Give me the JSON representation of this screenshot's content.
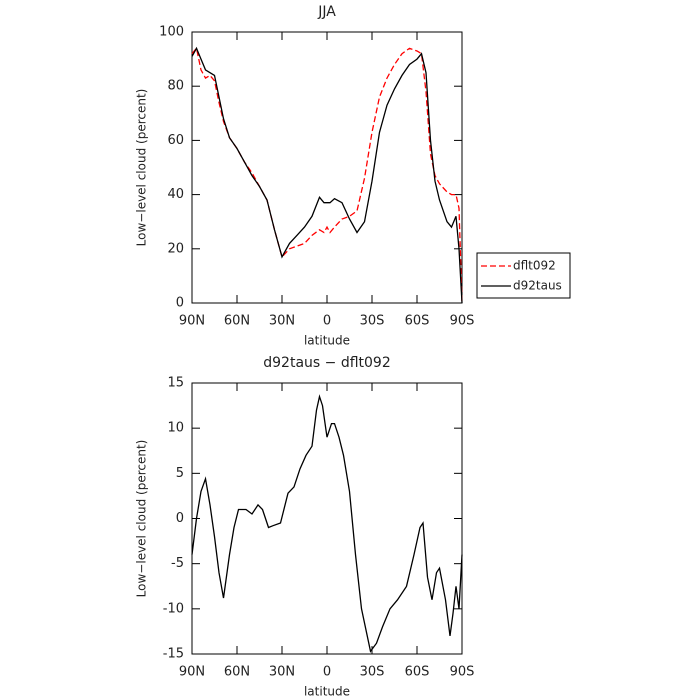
{
  "chart_data": [
    {
      "type": "line",
      "title": "JJA",
      "xlabel": "latitude",
      "ylabel": "Low−level cloud (percent)",
      "x": [
        90,
        87,
        84,
        81,
        78,
        75,
        72,
        69,
        65,
        60,
        55,
        50,
        45,
        40,
        35,
        30,
        25,
        20,
        15,
        10,
        5,
        2,
        0,
        -2,
        -5,
        -10,
        -15,
        -20,
        -25,
        -30,
        -35,
        -40,
        -45,
        -50,
        -55,
        -60,
        -63,
        -66,
        -69,
        -72,
        -75,
        -80,
        -83,
        -86,
        -88,
        -90
      ],
      "series": [
        {
          "name": "dflt092",
          "color": "#ff0000",
          "linestyle": "dashed",
          "values": [
            92,
            94,
            86,
            83,
            84,
            82,
            74,
            67,
            61,
            57,
            52,
            48,
            43,
            38,
            27,
            17,
            20,
            21,
            22,
            25,
            27,
            26,
            28,
            26,
            28,
            31,
            32,
            34,
            46,
            63,
            76,
            83,
            88,
            92,
            94,
            93,
            92,
            78,
            55,
            47,
            44,
            41,
            40,
            40,
            35,
            0
          ]
        },
        {
          "name": "d92taus",
          "color": "#000000",
          "linestyle": "solid",
          "values": [
            91,
            94,
            90,
            86,
            85,
            84,
            76,
            68,
            61,
            57,
            52,
            47,
            43,
            38,
            27,
            17,
            22,
            25,
            28,
            32,
            39,
            37,
            37,
            37,
            38.5,
            37,
            31,
            26,
            30,
            45,
            63,
            73,
            79,
            84,
            88,
            90,
            92,
            85,
            60,
            45,
            38,
            30,
            28,
            32,
            20,
            0
          ]
        }
      ],
      "xlim": [
        90,
        -90
      ],
      "xticks": [
        {
          "value": 90,
          "label": "90N"
        },
        {
          "value": 60,
          "label": "60N"
        },
        {
          "value": 30,
          "label": "30N"
        },
        0,
        {
          "value": -30,
          "label": "30S"
        },
        {
          "value": -60,
          "label": "60S"
        },
        {
          "value": -90,
          "label": "90S"
        }
      ],
      "ylim": [
        0,
        100
      ],
      "yticks": [
        0,
        20,
        40,
        60,
        80,
        100
      ],
      "legend": "outside-right"
    },
    {
      "type": "line",
      "title": "d92taus − dflt092",
      "xlabel": "latitude",
      "ylabel": "Low−level cloud (percent)",
      "x": [
        90,
        87,
        84,
        81,
        78,
        75,
        72,
        69,
        65,
        62,
        59,
        54,
        50,
        46,
        43,
        39,
        36,
        31,
        26,
        22,
        18,
        14,
        10,
        7,
        5,
        3,
        0,
        -3,
        -5,
        -8,
        -11,
        -15,
        -19,
        -23,
        -29,
        -33,
        -37,
        -42,
        -47,
        -53,
        -58,
        -62,
        -64,
        -67,
        -70,
        -73,
        -75,
        -79,
        -82,
        -84,
        -86,
        -88,
        -90
      ],
      "values": [
        -4,
        0,
        3,
        4.4,
        1.5,
        -2,
        -6,
        -8.8,
        -4,
        -1,
        1,
        1,
        0.5,
        1.5,
        1,
        -1,
        -0.8,
        -0.5,
        2.8,
        3.5,
        5.5,
        7,
        8,
        12,
        13.5,
        12.5,
        9,
        10.5,
        10.5,
        9,
        7,
        3,
        -4,
        -10,
        -14.7,
        -13.8,
        -12,
        -10,
        -9,
        -7.5,
        -4,
        -1,
        -0.5,
        -6.5,
        -9,
        -6,
        -5.5,
        -9,
        -13,
        -10.5,
        -7.5,
        -10,
        -4
      ],
      "color": "#000000",
      "xlim": [
        90,
        -90
      ],
      "xticks": [
        {
          "value": 90,
          "label": "90N"
        },
        {
          "value": 60,
          "label": "60N"
        },
        {
          "value": 30,
          "label": "30N"
        },
        0,
        {
          "value": -30,
          "label": "30S"
        },
        {
          "value": -60,
          "label": "60S"
        },
        {
          "value": -90,
          "label": "90S"
        }
      ],
      "ylim": [
        -15,
        15
      ],
      "yticks": [
        -15,
        -10,
        -5,
        0,
        5,
        10,
        15
      ]
    }
  ]
}
